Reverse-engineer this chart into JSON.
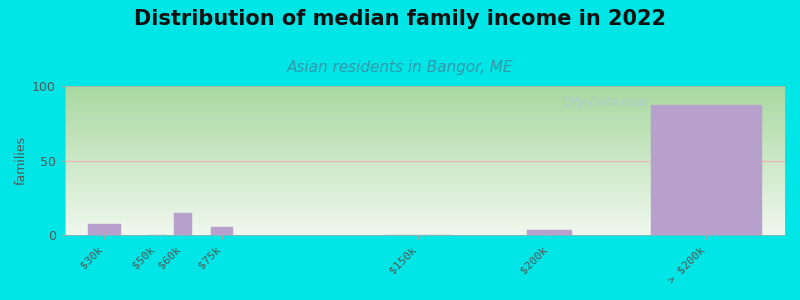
{
  "title": "Distribution of median family income in 2022",
  "subtitle": "Asian residents in Bangor, ME",
  "ylabel": "families",
  "categories": [
    "$30k",
    "$50k",
    "$60k",
    "$75k",
    "$150k",
    "$200k",
    "> $200k"
  ],
  "x_positions": [
    30,
    50,
    60,
    75,
    150,
    200,
    260
  ],
  "bar_widths": [
    15,
    8,
    8,
    10,
    30,
    20,
    50
  ],
  "values": [
    8,
    0,
    15,
    6,
    0,
    4,
    87
  ],
  "bar_color": "#b8a0cc",
  "bar_edge_color": "#b8a0cc",
  "ylim": [
    0,
    100
  ],
  "yticks": [
    0,
    50,
    100
  ],
  "background_color": "#00e5e5",
  "plot_bg_top_left": "#a8d8a0",
  "plot_bg_bottom_right": "#f0f8ee",
  "grid_line_color": "#f0b0b0",
  "title_fontsize": 15,
  "subtitle_fontsize": 11,
  "subtitle_color": "#3399aa",
  "watermark": "  City-Data.com",
  "watermark_color": "#a8ccd8",
  "tick_label_color": "#555555",
  "ylabel_color": "#555555",
  "tick_label_fontsize": 8
}
